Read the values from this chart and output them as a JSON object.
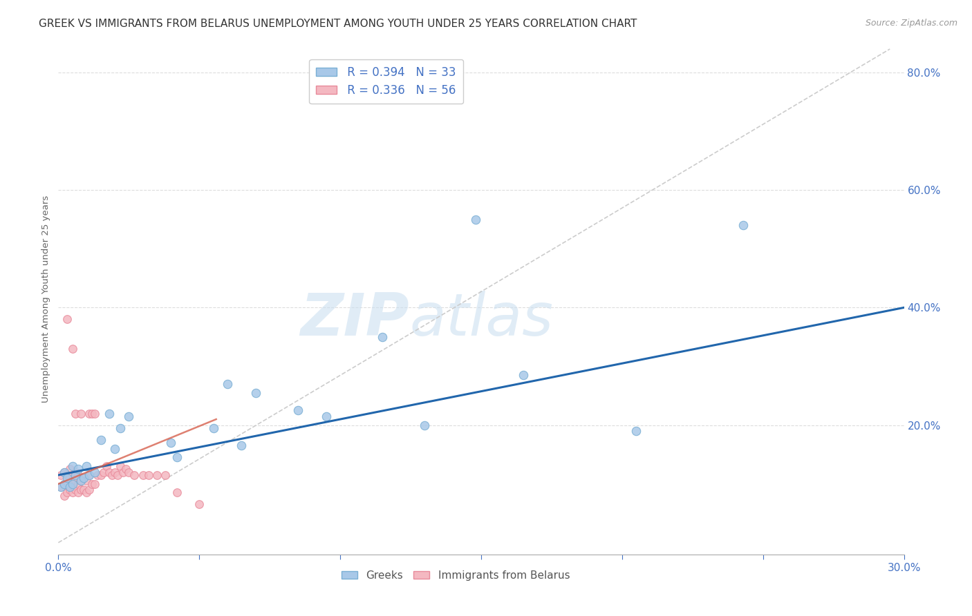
{
  "title": "GREEK VS IMMIGRANTS FROM BELARUS UNEMPLOYMENT AMONG YOUTH UNDER 25 YEARS CORRELATION CHART",
  "source": "Source: ZipAtlas.com",
  "ylabel": "Unemployment Among Youth under 25 years",
  "xlim": [
    0.0,
    0.3
  ],
  "ylim": [
    -0.02,
    0.85
  ],
  "color_greek": "#a8c8e8",
  "color_greek_edge": "#7aafd4",
  "color_belarus": "#f4b8c1",
  "color_belarus_edge": "#e88a9a",
  "color_greek_line": "#2166ac",
  "color_belarus_line": "#d6604d",
  "color_diag": "#cccccc",
  "legend_r_greek": "R = 0.394",
  "legend_n_greek": "N = 33",
  "legend_r_belarus": "R = 0.336",
  "legend_n_belarus": "N = 56",
  "label_greek": "Greeks",
  "label_belarus": "Immigrants from Belarus",
  "greeks_x": [
    0.001,
    0.002,
    0.002,
    0.003,
    0.004,
    0.005,
    0.005,
    0.006,
    0.007,
    0.008,
    0.009,
    0.01,
    0.011,
    0.013,
    0.015,
    0.018,
    0.02,
    0.022,
    0.025,
    0.04,
    0.042,
    0.055,
    0.06,
    0.065,
    0.07,
    0.085,
    0.095,
    0.115,
    0.13,
    0.148,
    0.165,
    0.205,
    0.243
  ],
  "greeks_y": [
    0.095,
    0.1,
    0.12,
    0.11,
    0.095,
    0.13,
    0.1,
    0.115,
    0.125,
    0.105,
    0.11,
    0.13,
    0.115,
    0.12,
    0.175,
    0.22,
    0.16,
    0.195,
    0.215,
    0.17,
    0.145,
    0.195,
    0.27,
    0.165,
    0.255,
    0.225,
    0.215,
    0.35,
    0.2,
    0.55,
    0.285,
    0.19,
    0.54
  ],
  "belarus_x": [
    0.001,
    0.001,
    0.002,
    0.002,
    0.002,
    0.003,
    0.003,
    0.003,
    0.003,
    0.004,
    0.004,
    0.004,
    0.005,
    0.005,
    0.005,
    0.005,
    0.006,
    0.006,
    0.006,
    0.006,
    0.007,
    0.007,
    0.007,
    0.008,
    0.008,
    0.008,
    0.009,
    0.009,
    0.01,
    0.01,
    0.011,
    0.011,
    0.011,
    0.012,
    0.012,
    0.013,
    0.013,
    0.014,
    0.015,
    0.016,
    0.017,
    0.018,
    0.019,
    0.02,
    0.021,
    0.022,
    0.023,
    0.024,
    0.025,
    0.027,
    0.03,
    0.032,
    0.035,
    0.038,
    0.042,
    0.05
  ],
  "belarus_y": [
    0.095,
    0.115,
    0.08,
    0.1,
    0.12,
    0.085,
    0.1,
    0.115,
    0.38,
    0.09,
    0.11,
    0.125,
    0.085,
    0.1,
    0.115,
    0.33,
    0.09,
    0.105,
    0.12,
    0.22,
    0.085,
    0.1,
    0.115,
    0.09,
    0.105,
    0.22,
    0.09,
    0.11,
    0.085,
    0.105,
    0.09,
    0.115,
    0.22,
    0.1,
    0.22,
    0.1,
    0.22,
    0.115,
    0.115,
    0.12,
    0.13,
    0.12,
    0.115,
    0.12,
    0.115,
    0.13,
    0.12,
    0.125,
    0.12,
    0.115,
    0.115,
    0.115,
    0.115,
    0.115,
    0.085,
    0.065
  ],
  "watermark_zip": "ZIP",
  "watermark_atlas": "atlas",
  "background_color": "#ffffff",
  "grid_color": "#dddddd",
  "axis_color": "#4472c4",
  "title_color": "#333333",
  "title_fontsize": 11,
  "ytick_vals": [
    0.2,
    0.4,
    0.6,
    0.8
  ]
}
